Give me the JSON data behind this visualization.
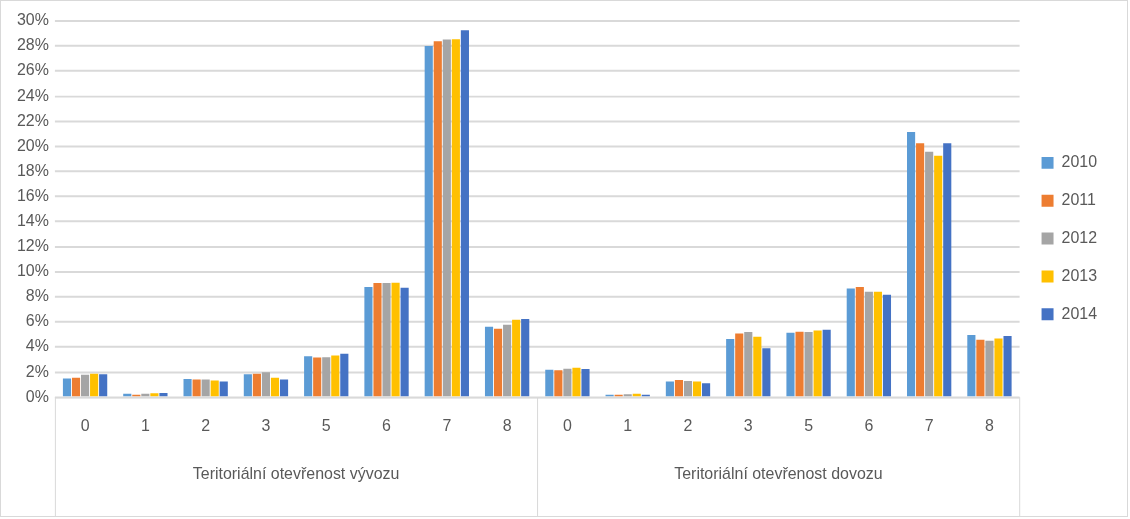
{
  "chart_data": {
    "type": "bar",
    "categories": [
      "0",
      "1",
      "2",
      "3",
      "5",
      "6",
      "7",
      "8",
      "0",
      "1",
      "2",
      "3",
      "5",
      "6",
      "7",
      "8"
    ],
    "series": [
      {
        "name": "2010",
        "color": "#5b9bd5",
        "values": [
          1.5,
          0.27,
          1.46,
          1.83,
          3.26,
          8.78,
          28.0,
          5.62,
          2.2,
          0.21,
          1.25,
          4.64,
          5.15,
          8.67,
          21.14,
          4.96
        ]
      },
      {
        "name": "2011",
        "color": "#ed7d31",
        "values": [
          1.56,
          0.21,
          1.41,
          1.88,
          3.16,
          9.1,
          28.38,
          5.46,
          2.15,
          0.21,
          1.38,
          5.09,
          5.23,
          8.78,
          20.24,
          4.59
        ]
      },
      {
        "name": "2012",
        "color": "#a5a5a5",
        "values": [
          1.8,
          0.27,
          1.41,
          1.99,
          3.18,
          9.1,
          28.51,
          5.78,
          2.28,
          0.24,
          1.3,
          5.2,
          5.2,
          8.41,
          19.58,
          4.51
        ]
      },
      {
        "name": "2013",
        "color": "#ffc000",
        "values": [
          1.88,
          0.32,
          1.33,
          1.56,
          3.32,
          9.12,
          28.54,
          6.18,
          2.36,
          0.27,
          1.25,
          4.83,
          5.33,
          8.41,
          19.26,
          4.69
        ]
      },
      {
        "name": "2014",
        "color": "#4472c4",
        "values": [
          1.83,
          0.34,
          1.25,
          1.41,
          3.47,
          8.73,
          29.26,
          6.23,
          2.25,
          0.21,
          1.11,
          3.9,
          5.38,
          8.17,
          20.24,
          4.88
        ]
      }
    ],
    "ylim": [
      0,
      30
    ],
    "yticks": [
      {
        "value": 0,
        "label": "0%"
      },
      {
        "value": 2,
        "label": "2%"
      },
      {
        "value": 4,
        "label": "4%"
      },
      {
        "value": 6,
        "label": "6%"
      },
      {
        "value": 8,
        "label": "8%"
      },
      {
        "value": 10,
        "label": "10%"
      },
      {
        "value": 12,
        "label": "12%"
      },
      {
        "value": 14,
        "label": "14%"
      },
      {
        "value": 16,
        "label": "16%"
      },
      {
        "value": 18,
        "label": "18%"
      },
      {
        "value": 20,
        "label": "20%"
      },
      {
        "value": 22,
        "label": "22%"
      },
      {
        "value": 24,
        "label": "24%"
      },
      {
        "value": 26,
        "label": "26%"
      },
      {
        "value": 28,
        "label": "28%"
      },
      {
        "value": 30,
        "label": "30%"
      }
    ],
    "annotations": [
      "Teritoriální otevřenost vývozu",
      "Teritoriální otevřenost dovozu"
    ],
    "grid": "y",
    "legend": "right"
  }
}
